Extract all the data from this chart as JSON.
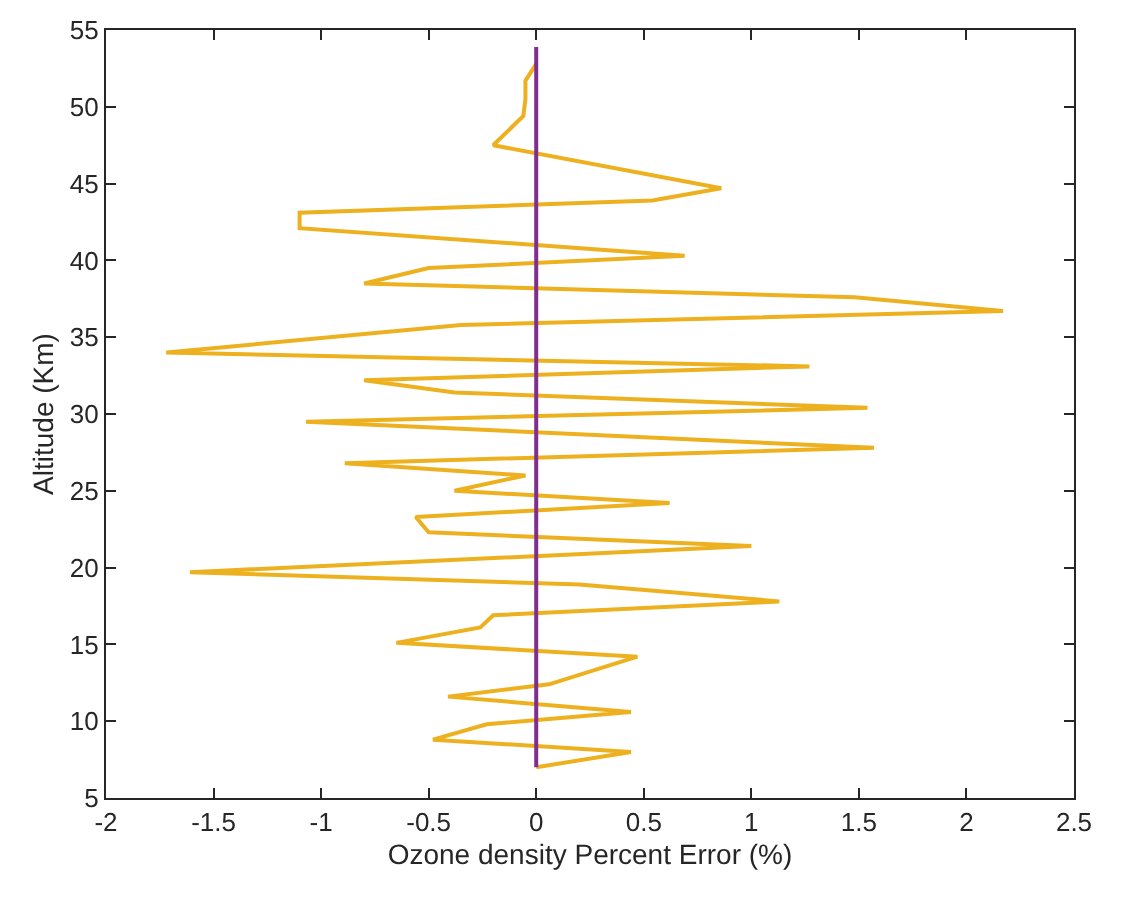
{
  "chart_data": {
    "type": "line",
    "xlabel": "Ozone density Percent Error (%)",
    "ylabel": "Altitude (Km)",
    "series": [
      {
        "color": "#edb120",
        "x": [
          0,
          0.44,
          -0.48,
          -0.23,
          0.44,
          -0.41,
          0.06,
          0.47,
          -0.65,
          -0.26,
          -0.2,
          1.13,
          0.2,
          -1.61,
          1.0,
          -0.5,
          -0.56,
          0.62,
          -0.38,
          -0.05,
          -0.89,
          1.57,
          -1.07,
          1.54,
          -0.38,
          -0.8,
          1.27,
          -1.72,
          -0.35,
          2.17,
          1.48,
          -0.8,
          -0.5,
          0.69,
          -1.1,
          -1.1,
          0.54,
          0.86,
          -0.2,
          -0.06,
          -0.05,
          -0.05,
          0
        ],
        "values": [
          7.0,
          8.0,
          8.8,
          9.8,
          10.6,
          11.6,
          12.4,
          14.2,
          15.1,
          16.1,
          16.9,
          17.8,
          18.9,
          19.7,
          21.4,
          22.3,
          23.3,
          24.2,
          25.0,
          26.0,
          26.8,
          27.8,
          29.5,
          30.4,
          31.4,
          32.2,
          33.1,
          34.0,
          35.8,
          36.7,
          37.6,
          38.5,
          39.5,
          40.3,
          42.1,
          43.1,
          43.9,
          44.7,
          47.5,
          49.4,
          50.5,
          51.7,
          52.8
        ]
      },
      {
        "color": "#7e2f8e",
        "x": [
          0,
          0
        ],
        "values": [
          7.0,
          53.9
        ]
      }
    ],
    "xlim": [
      -2,
      2.5
    ],
    "xticks": [
      -2,
      -1.5,
      -1,
      -0.5,
      0,
      0.5,
      1,
      1.5,
      2,
      2.5
    ],
    "ylim": [
      5,
      55
    ],
    "yticks": [
      5,
      10,
      15,
      20,
      25,
      30,
      35,
      40,
      45,
      50,
      55
    ],
    "marker": "none",
    "line_style": "solid"
  }
}
